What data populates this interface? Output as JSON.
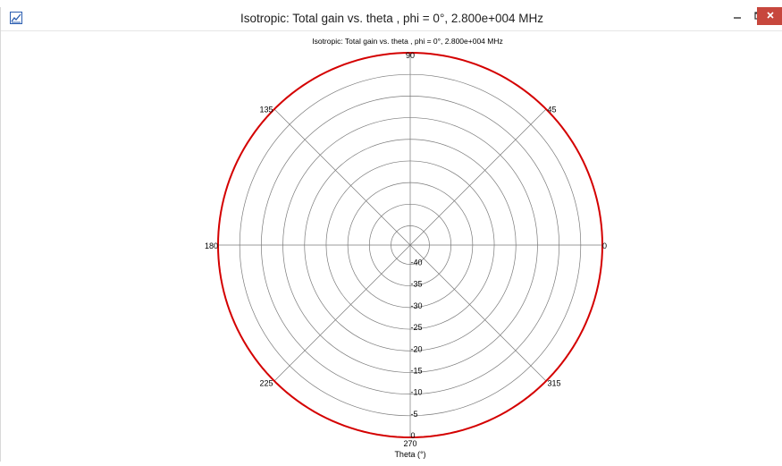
{
  "window": {
    "title": "Isotropic: Total gain vs. theta , phi = 0°, 2.800e+004 MHz",
    "icons": {
      "app": "chart-app-icon",
      "minimize": "minimize-icon",
      "maximize": "maximize-icon",
      "close": "close-icon"
    },
    "colors": {
      "close_button": "#c7473d",
      "trace": "#d40000"
    }
  },
  "chart_data": {
    "type": "polar",
    "title": "Isotropic: Total gain vs. theta , phi = 0°, 2.800e+004 MHz",
    "xlabel": "Theta  (°)",
    "angle_ticks": [
      "0",
      "45",
      "90",
      "135",
      "180",
      "225",
      "270",
      "315"
    ],
    "radial_ticks": [
      "-40",
      "-35",
      "-30",
      "-25",
      "-20",
      "-15",
      "-10",
      "-5",
      "0"
    ],
    "radial_range": [
      -40,
      0
    ],
    "grid": true,
    "series": [
      {
        "theta": [
          0,
          45,
          90,
          135,
          180,
          225,
          270,
          315,
          360
        ],
        "gain": [
          0,
          0,
          0,
          0,
          0,
          0,
          0,
          0,
          0
        ]
      }
    ]
  }
}
